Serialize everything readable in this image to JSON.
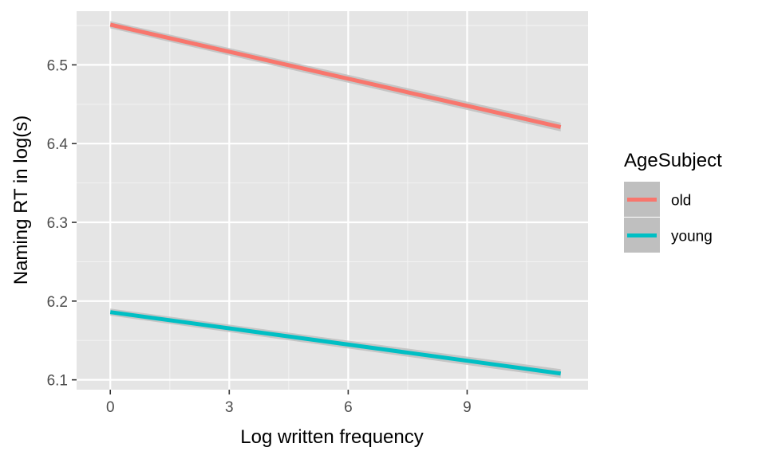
{
  "chart_data": {
    "type": "line",
    "xlabel": "Log written frequency",
    "ylabel": "Naming RT in log(s)",
    "xlim": [
      -0.85,
      12.05
    ],
    "ylim": [
      6.0875,
      6.5682
    ],
    "x_ticks": [
      0,
      3,
      6,
      9
    ],
    "x_tick_labels": [
      "0",
      "3",
      "6",
      "9"
    ],
    "x_minor_ticks": [
      1.5,
      4.5,
      7.5,
      10.5
    ],
    "y_ticks": [
      6.1,
      6.2,
      6.3,
      6.4,
      6.5
    ],
    "y_tick_labels": [
      "6.1",
      "6.2",
      "6.3",
      "6.4",
      "6.5"
    ],
    "y_minor_ticks": [
      6.15,
      6.25,
      6.35,
      6.45,
      6.55
    ],
    "grid": true,
    "panel_background": "#e5e5e5",
    "ribbon_color": "#bfbfbf",
    "legend": {
      "title": "AgeSubject",
      "placement": "right"
    },
    "series": [
      {
        "name": "old",
        "color": "#f8766d",
        "x": [
          0,
          11.36
        ],
        "y": [
          6.551,
          6.421
        ],
        "ci_width": [
          0.0045,
          0.0055
        ]
      },
      {
        "name": "young",
        "color": "#00bfc4",
        "x": [
          0,
          11.36
        ],
        "y": [
          6.186,
          6.108
        ],
        "ci_width": [
          0.0045,
          0.0055
        ]
      }
    ]
  }
}
